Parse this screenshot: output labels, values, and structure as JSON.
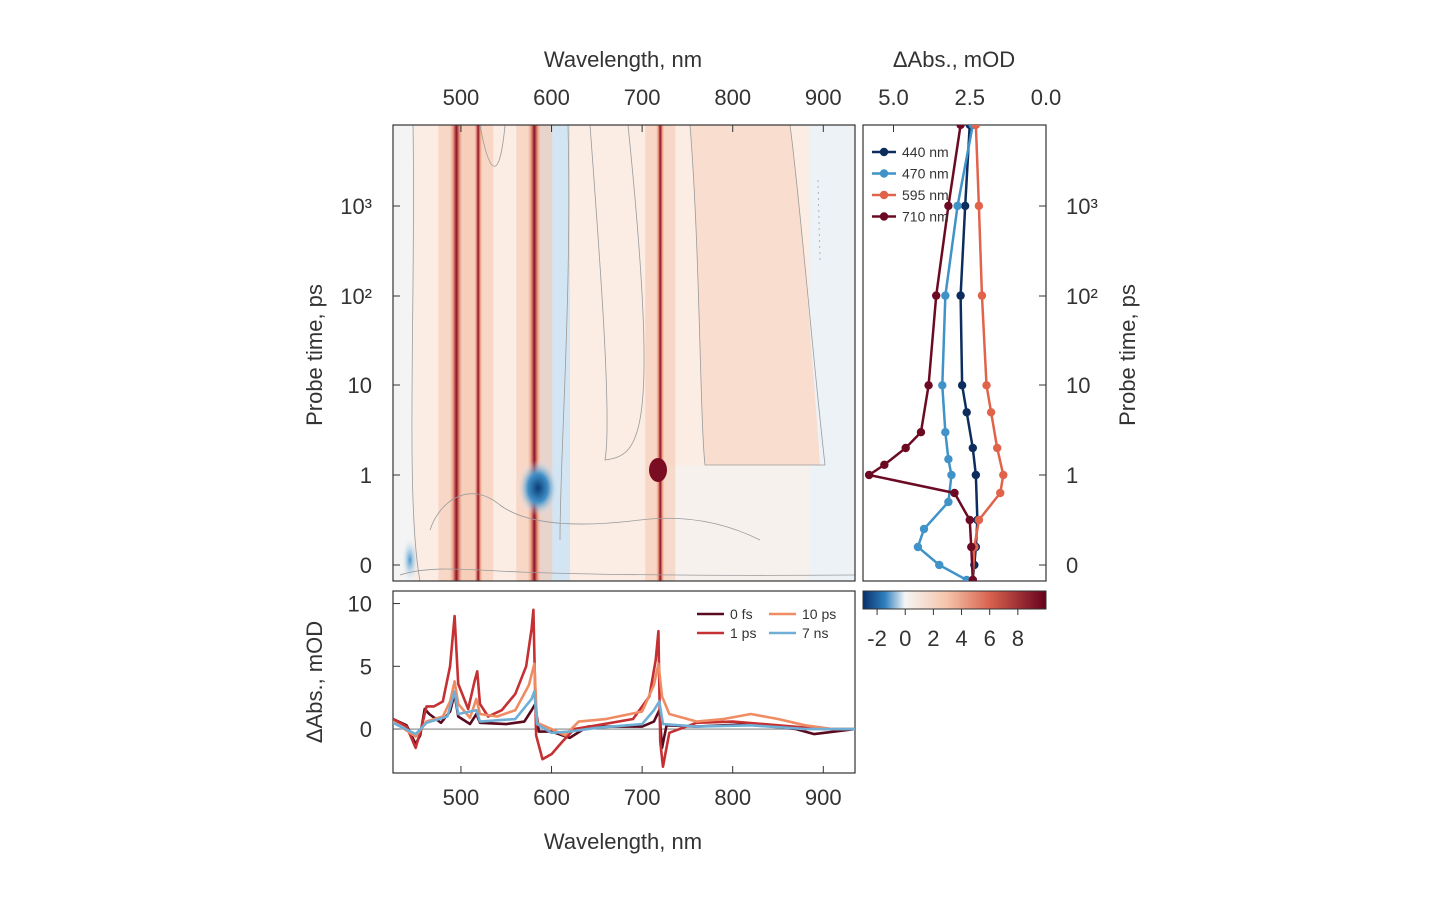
{
  "chart_data": [
    {
      "type": "heatmap",
      "panel": "contour-map",
      "top_xlabel": "Wavelength, nm",
      "xlim": [
        425,
        935
      ],
      "x_ticks": [
        500,
        600,
        700,
        800,
        900
      ],
      "ylabel": "Probe time, ps",
      "y_ticks": [
        "0",
        "1",
        "10",
        "10²",
        "10³"
      ],
      "colorbar": {
        "min": -3,
        "max": 10,
        "ticks": [
          "-2",
          "0",
          "2",
          "4",
          "6",
          "8"
        ]
      },
      "features": [
        {
          "wavelength": 452,
          "time": 0.1,
          "value": -2,
          "kind": "blob"
        },
        {
          "wavelength": 495,
          "value": 9,
          "kind": "band"
        },
        {
          "wavelength": 519,
          "value": 5,
          "kind": "band"
        },
        {
          "wavelength": 581,
          "value": 9.5,
          "kind": "band"
        },
        {
          "wavelength": 588,
          "time": 0.9,
          "value": -3,
          "kind": "blob"
        },
        {
          "wavelength": 720,
          "value": 7.8,
          "kind": "band"
        }
      ]
    },
    {
      "type": "line",
      "panel": "kinetics",
      "xlabel": "ΔAbs., mOD",
      "xlim": [
        6.0,
        0.0
      ],
      "x_ticks": [
        5.0,
        2.5,
        0.0
      ],
      "x_tick_labels": [
        "5.0",
        "2.5",
        "0.0"
      ],
      "ylabel": "Probe time, ps",
      "y_ticks": [
        "0",
        "1",
        "10",
        "10²",
        "10³"
      ],
      "legend": "top-left",
      "series": [
        {
          "name": "440 nm",
          "color": "#0d2d5e",
          "values": [
            [
              2.4,
              -0.2
            ],
            [
              2.35,
              0
            ],
            [
              2.3,
              0.2
            ],
            [
              2.25,
              0.5
            ],
            [
              2.3,
              1
            ],
            [
              2.4,
              2
            ],
            [
              2.6,
              5
            ],
            [
              2.75,
              10
            ],
            [
              2.8,
              100
            ],
            [
              2.65,
              1000
            ],
            [
              2.5,
              8000
            ]
          ]
        },
        {
          "name": "470 nm",
          "color": "#3f93c8",
          "values": [
            [
              2.6,
              -0.2
            ],
            [
              3.5,
              0
            ],
            [
              4.2,
              0.2
            ],
            [
              4.0,
              0.4
            ],
            [
              3.2,
              0.7
            ],
            [
              3.1,
              1
            ],
            [
              3.2,
              1.5
            ],
            [
              3.3,
              3
            ],
            [
              3.4,
              10
            ],
            [
              3.3,
              100
            ],
            [
              2.9,
              1000
            ],
            [
              2.4,
              8000
            ]
          ]
        },
        {
          "name": "595 nm",
          "color": "#e0634a",
          "values": [
            [
              2.4,
              -0.2
            ],
            [
              2.35,
              0.2
            ],
            [
              2.2,
              0.5
            ],
            [
              1.5,
              0.8
            ],
            [
              1.4,
              1
            ],
            [
              1.6,
              2
            ],
            [
              1.8,
              5
            ],
            [
              1.95,
              10
            ],
            [
              2.1,
              100
            ],
            [
              2.2,
              1000
            ],
            [
              2.3,
              8000
            ]
          ]
        },
        {
          "name": "710 nm",
          "color": "#6b0a22",
          "values": [
            [
              2.4,
              -0.2
            ],
            [
              2.45,
              0.2
            ],
            [
              2.5,
              0.5
            ],
            [
              3.0,
              0.8
            ],
            [
              5.8,
              1
            ],
            [
              5.3,
              1.3
            ],
            [
              4.6,
              2
            ],
            [
              4.1,
              3
            ],
            [
              3.85,
              10
            ],
            [
              3.6,
              100
            ],
            [
              3.2,
              1000
            ],
            [
              2.8,
              8000
            ]
          ]
        }
      ]
    },
    {
      "type": "line",
      "panel": "spectra",
      "xlabel": "Wavelength, nm",
      "ylabel": "ΔAbs., mOD",
      "xlim": [
        425,
        935
      ],
      "ylim": [
        -3.5,
        11
      ],
      "x_ticks": [
        500,
        600,
        700,
        800,
        900
      ],
      "y_ticks": [
        0,
        5,
        10
      ],
      "legend": "top-right",
      "series": [
        {
          "name": "0 fs",
          "color": "#5a0a1e",
          "values": [
            [
              425,
              0.8
            ],
            [
              440,
              0.3
            ],
            [
              450,
              -1.2
            ],
            [
              455,
              -0.5
            ],
            [
              460,
              1.6
            ],
            [
              465,
              1.2
            ],
            [
              478,
              0.5
            ],
            [
              488,
              1.4
            ],
            [
              493,
              2.8
            ],
            [
              497,
              1.0
            ],
            [
              510,
              0.4
            ],
            [
              517,
              1.2
            ],
            [
              521,
              0.5
            ],
            [
              550,
              0.4
            ],
            [
              570,
              0.6
            ],
            [
              578,
              1.5
            ],
            [
              582,
              2.0
            ],
            [
              586,
              -0.2
            ],
            [
              600,
              -0.2
            ],
            [
              620,
              -0.7
            ],
            [
              640,
              0.2
            ],
            [
              700,
              0.2
            ],
            [
              713,
              0.6
            ],
            [
              719,
              1.5
            ],
            [
              722,
              -1.5
            ],
            [
              727,
              0.3
            ],
            [
              760,
              0.2
            ],
            [
              820,
              0.4
            ],
            [
              870,
              0
            ],
            [
              890,
              -0.4
            ],
            [
              935,
              0
            ]
          ]
        },
        {
          "name": "1 ps",
          "color": "#c53032",
          "values": [
            [
              425,
              0.8
            ],
            [
              440,
              0.2
            ],
            [
              450,
              -1.5
            ],
            [
              456,
              0
            ],
            [
              462,
              1.8
            ],
            [
              470,
              1.8
            ],
            [
              480,
              2.2
            ],
            [
              488,
              5.0
            ],
            [
              493,
              9.0
            ],
            [
              497,
              3.6
            ],
            [
              508,
              1.6
            ],
            [
              515,
              3.8
            ],
            [
              518,
              4.6
            ],
            [
              521,
              2.0
            ],
            [
              530,
              1.0
            ],
            [
              545,
              1.5
            ],
            [
              560,
              2.8
            ],
            [
              572,
              5.0
            ],
            [
              578,
              8.0
            ],
            [
              580,
              9.5
            ],
            [
              583,
              -0.5
            ],
            [
              590,
              -2.4
            ],
            [
              600,
              -2.0
            ],
            [
              612,
              -1.0
            ],
            [
              625,
              0
            ],
            [
              650,
              0.3
            ],
            [
              690,
              0.8
            ],
            [
              708,
              2.6
            ],
            [
              715,
              5.5
            ],
            [
              718,
              7.8
            ],
            [
              720,
              -1.0
            ],
            [
              723,
              -3.0
            ],
            [
              730,
              -0.3
            ],
            [
              760,
              0.5
            ],
            [
              800,
              0.6
            ],
            [
              850,
              0.3
            ],
            [
              900,
              0
            ],
            [
              935,
              0
            ]
          ]
        },
        {
          "name": "10 ps",
          "color": "#f08c64",
          "values": [
            [
              425,
              0.6
            ],
            [
              450,
              -0.6
            ],
            [
              462,
              0.6
            ],
            [
              480,
              1.0
            ],
            [
              488,
              2.2
            ],
            [
              493,
              3.8
            ],
            [
              497,
              2.0
            ],
            [
              510,
              0.9
            ],
            [
              517,
              2.4
            ],
            [
              521,
              1.2
            ],
            [
              540,
              1.0
            ],
            [
              560,
              1.5
            ],
            [
              575,
              3.5
            ],
            [
              581,
              5.2
            ],
            [
              584,
              0.5
            ],
            [
              600,
              0
            ],
            [
              615,
              -0.5
            ],
            [
              630,
              0.6
            ],
            [
              660,
              0.8
            ],
            [
              700,
              1.4
            ],
            [
              713,
              3.5
            ],
            [
              718,
              5.2
            ],
            [
              722,
              2.6
            ],
            [
              730,
              1.2
            ],
            [
              760,
              0.6
            ],
            [
              790,
              0.8
            ],
            [
              820,
              1.2
            ],
            [
              850,
              0.8
            ],
            [
              880,
              0.3
            ],
            [
              910,
              0
            ],
            [
              935,
              0
            ]
          ]
        },
        {
          "name": "7 ns",
          "color": "#6fafd6",
          "values": [
            [
              425,
              0.5
            ],
            [
              450,
              -0.4
            ],
            [
              462,
              0.5
            ],
            [
              485,
              1.0
            ],
            [
              493,
              3.0
            ],
            [
              497,
              1.2
            ],
            [
              517,
              1.5
            ],
            [
              521,
              0.6
            ],
            [
              560,
              0.8
            ],
            [
              578,
              2.4
            ],
            [
              581,
              3.0
            ],
            [
              584,
              0.4
            ],
            [
              600,
              -0.3
            ],
            [
              620,
              -0.2
            ],
            [
              650,
              0.1
            ],
            [
              700,
              0.4
            ],
            [
              713,
              1.5
            ],
            [
              719,
              2.2
            ],
            [
              723,
              0.4
            ],
            [
              760,
              0.2
            ],
            [
              820,
              0.3
            ],
            [
              880,
              0
            ],
            [
              935,
              0
            ]
          ]
        }
      ]
    }
  ]
}
